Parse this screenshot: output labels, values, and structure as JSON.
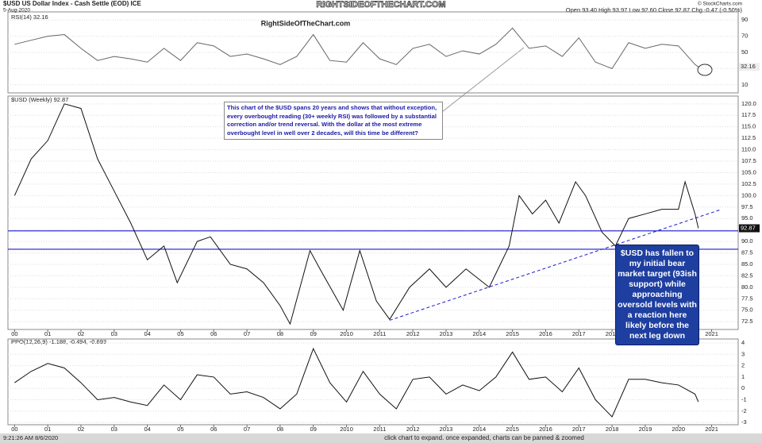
{
  "header": {
    "symbol_line": "$USD US Dollar Index - Cash Settle (EOD) ICE",
    "date": "5-Aug-2020",
    "quote": "Open 93.40 High 93.97 Low 92.60 Close 92.87 Chg -0.47 (-0.50%)",
    "copyright": "© StockCharts.com",
    "banner": "RIGHTSIDEOFTHECHART.COM"
  },
  "chart_data": [
    {
      "type": "line",
      "title": "RSI(14) 32.16",
      "watermark": "RightSideOfTheChart.com",
      "color": "#666666",
      "x": [
        2000,
        2000.5,
        2001,
        2001.5,
        2002,
        2002.5,
        2003,
        2003.5,
        2004,
        2004.5,
        2005,
        2005.5,
        2006,
        2006.5,
        2007,
        2007.5,
        2008,
        2008.5,
        2009,
        2009.5,
        2010,
        2010.5,
        2011,
        2011.5,
        2012,
        2012.5,
        2013,
        2013.5,
        2014,
        2014.5,
        2015,
        2015.5,
        2016,
        2016.5,
        2017,
        2017.5,
        2018,
        2018.5,
        2019,
        2019.5,
        2020,
        2020.5,
        2020.6
      ],
      "values": [
        60,
        65,
        70,
        72,
        55,
        40,
        45,
        42,
        38,
        55,
        40,
        62,
        58,
        45,
        48,
        42,
        35,
        45,
        72,
        40,
        38,
        62,
        42,
        35,
        55,
        60,
        45,
        52,
        48,
        60,
        80,
        55,
        58,
        45,
        68,
        38,
        30,
        62,
        55,
        60,
        58,
        35,
        32.16
      ],
      "last_value": 32.16,
      "xlim": [
        1999.8,
        2021.8
      ],
      "ylim": [
        0,
        100
      ],
      "yticks": [
        10,
        30,
        50,
        70,
        90
      ],
      "grid": true
    },
    {
      "type": "line",
      "title": "$USD (Weekly) 92.87",
      "color": "#111111",
      "x": [
        2000,
        2000.5,
        2001,
        2001.5,
        2002,
        2002.5,
        2003,
        2003.5,
        2004,
        2004.5,
        2004.9,
        2005.5,
        2005.9,
        2006.5,
        2007,
        2007.5,
        2008,
        2008.3,
        2008.9,
        2009.2,
        2009.9,
        2010.4,
        2010.9,
        2011.3,
        2011.9,
        2012.5,
        2013,
        2013.6,
        2014.3,
        2014.9,
        2015.2,
        2015.6,
        2016,
        2016.4,
        2016.9,
        2017.2,
        2017.7,
        2018.1,
        2018.5,
        2019,
        2019.5,
        2020,
        2020.2,
        2020.5,
        2020.6
      ],
      "values": [
        100,
        108,
        112,
        120,
        119,
        108,
        101,
        94,
        86,
        89,
        81,
        90,
        91,
        85,
        84,
        81,
        76,
        72,
        88,
        84,
        75,
        88,
        77,
        73,
        80,
        84,
        80,
        84,
        80,
        89,
        100,
        96,
        99,
        94,
        103,
        100,
        92,
        89,
        95,
        96,
        97,
        97,
        103,
        96,
        92.87
      ],
      "last_value": 92.87,
      "xlim": [
        1999.8,
        2021.8
      ],
      "ylim": [
        70.8,
        121.7
      ],
      "yticks": [
        72.5,
        {
          "value": 75,
          "label": "75.0"
        },
        77.5,
        {
          "value": 80,
          "label": "80.0"
        },
        82.5,
        {
          "value": 85,
          "label": "85.0"
        },
        87.5,
        {
          "value": 90,
          "label": "90.0"
        },
        92.5,
        {
          "value": 95,
          "label": "95.0"
        },
        97.5,
        {
          "value": 100,
          "label": "100.0"
        },
        102.5,
        {
          "value": 105,
          "label": "105.0"
        },
        107.5,
        {
          "value": 110,
          "label": "110.0"
        },
        112.5,
        {
          "value": 115,
          "label": "115.0"
        },
        117.5,
        {
          "value": 120,
          "label": "120.0"
        }
      ],
      "xticks": [
        {
          "value": 2000,
          "label": "00"
        },
        {
          "value": 2001,
          "label": "01"
        },
        {
          "value": 2002,
          "label": "02"
        },
        {
          "value": 2003,
          "label": "03"
        },
        {
          "value": 2004,
          "label": "04"
        },
        {
          "value": 2005,
          "label": "05"
        },
        {
          "value": 2006,
          "label": "06"
        },
        {
          "value": 2007,
          "label": "07"
        },
        {
          "value": 2008,
          "label": "08"
        },
        {
          "value": 2009,
          "label": "09"
        },
        2010,
        2011,
        2012,
        2013,
        2014,
        2015,
        2016,
        2017,
        2018,
        2019,
        2020,
        2021
      ],
      "support_levels": [
        92.3,
        88.3
      ],
      "trendline": {
        "x": [
          2011.3,
          2021.3
        ],
        "values": [
          72.8,
          97
        ]
      },
      "grid": true,
      "annotations": [
        "This chart of the $USD spans 20 years and shows that without exception, every overbought reading (30+ weekly RSI) was followed by a substantial correction and/or trend reversal. With the dollar at the most extreme overbought level in well over 2 decades, will this time be different?",
        "$USD has fallen to my initial bear market target (93ish support) while approaching oversold levels with a reaction here likely before the next leg down"
      ]
    },
    {
      "type": "line",
      "title": "PPO(12,26,9) -1.188, -0.494, -0.693",
      "color": "#111111",
      "x": [
        2000,
        2000.5,
        2001,
        2001.5,
        2002,
        2002.5,
        2003,
        2003.5,
        2004,
        2004.5,
        2005,
        2005.5,
        2006,
        2006.5,
        2007,
        2007.5,
        2008,
        2008.5,
        2009,
        2009.5,
        2010,
        2010.5,
        2011,
        2011.5,
        2012,
        2012.5,
        2013,
        2013.5,
        2014,
        2014.5,
        2015,
        2015.5,
        2016,
        2016.5,
        2017,
        2017.5,
        2018,
        2018.5,
        2019,
        2019.5,
        2020,
        2020.5,
        2020.6
      ],
      "values": [
        0.5,
        1.5,
        2.2,
        1.8,
        0.5,
        -1.0,
        -0.8,
        -1.2,
        -1.5,
        0.3,
        -1.0,
        1.2,
        1.0,
        -0.5,
        -0.3,
        -0.8,
        -1.8,
        -0.5,
        3.5,
        0.5,
        -1.2,
        1.5,
        -0.5,
        -1.8,
        0.8,
        1.0,
        -0.5,
        0.3,
        -0.2,
        1.0,
        3.2,
        0.8,
        1.0,
        -0.3,
        1.8,
        -1.0,
        -2.5,
        0.8,
        0.8,
        0.5,
        0.3,
        -0.5,
        -1.188
      ],
      "xlim": [
        1999.8,
        2021.8
      ],
      "ylim": [
        -3.2,
        4.35
      ],
      "yticks": [
        -3,
        -2,
        -1,
        0,
        1,
        2,
        3,
        4
      ],
      "grid": true,
      "xticks": [
        {
          "value": 2000,
          "label": "00"
        },
        {
          "value": 2001,
          "label": "01"
        },
        {
          "value": 2002,
          "label": "02"
        },
        {
          "value": 2003,
          "label": "03"
        },
        {
          "value": 2004,
          "label": "04"
        },
        {
          "value": 2005,
          "label": "05"
        },
        {
          "value": 2006,
          "label": "06"
        },
        {
          "value": 2007,
          "label": "07"
        },
        {
          "value": 2008,
          "label": "08"
        },
        {
          "value": 2009,
          "label": "09"
        },
        2010,
        2011,
        2012,
        2013,
        2014,
        2015,
        2016,
        2017,
        2018,
        2019,
        2020,
        2021
      ]
    }
  ],
  "footer": {
    "timestamp": "9:21:26 AM 8/6/2020",
    "hint": "click chart to expand. once expanded, charts can be panned & zoomed"
  }
}
